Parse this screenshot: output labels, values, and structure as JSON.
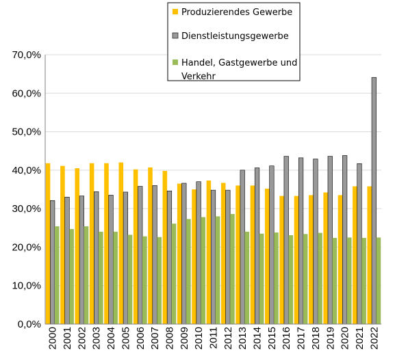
{
  "chart_data": {
    "type": "bar",
    "title": "",
    "xlabel": "",
    "ylabel": "",
    "ylim": [
      0,
      70
    ],
    "ytick_step": 10,
    "ytick_labels": [
      "0,0%",
      "10,0%",
      "20,0%",
      "30,0%",
      "40,0%",
      "50,0%",
      "60,0%",
      "70,0%"
    ],
    "grid": true,
    "legend_position": "top-right",
    "categories": [
      "2000",
      "2001",
      "2002",
      "2003",
      "2004",
      "2005",
      "2006",
      "2007",
      "2008",
      "2009",
      "2010",
      "2011",
      "2012",
      "2013",
      "2014",
      "2015",
      "2016",
      "2017",
      "2018",
      "2019",
      "2020",
      "2021",
      "2022"
    ],
    "series": [
      {
        "name": "Produzierendes Gewerbe",
        "color": "#FFC000",
        "values": [
          41.8,
          41.1,
          40.5,
          41.8,
          41.8,
          42.0,
          40.2,
          40.7,
          39.8,
          36.5,
          35.0,
          37.3,
          36.7,
          36.0,
          36.0,
          35.2,
          33.3,
          33.3,
          33.5,
          34.2,
          33.5,
          35.8,
          35.8
        ]
      },
      {
        "name": "Dienstleistungsgewerbe",
        "color": "#999999",
        "values": [
          32.1,
          33.0,
          33.3,
          34.4,
          33.5,
          34.3,
          35.8,
          36.0,
          34.6,
          36.6,
          37.0,
          34.8,
          34.8,
          40.0,
          40.6,
          41.1,
          43.6,
          43.2,
          42.9,
          43.6,
          43.8,
          41.7,
          64.1
        ]
      },
      {
        "name": "Handel, Gastgewerbe und Verkehr",
        "color": "#9BBB59",
        "values": [
          25.4,
          24.7,
          25.4,
          24.0,
          24.0,
          23.2,
          22.8,
          22.6,
          26.1,
          27.3,
          27.8,
          28.0,
          28.6,
          24.0,
          23.5,
          23.8,
          23.1,
          23.4,
          23.7,
          22.4,
          22.5,
          22.4,
          22.5
        ]
      }
    ]
  }
}
